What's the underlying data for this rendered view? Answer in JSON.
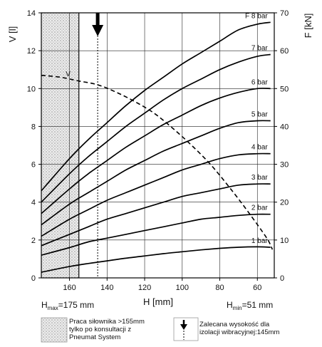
{
  "chart_data": {
    "type": "line",
    "xlabel": "H [mm]",
    "ylabel_left": "V [l]",
    "ylabel_right": "F [kN]",
    "x_reversed": true,
    "xlim": [
      175,
      51
    ],
    "ylim_left": [
      0,
      14
    ],
    "ylim_right": [
      0,
      70
    ],
    "x_ticks": [
      160,
      140,
      120,
      100,
      80,
      60
    ],
    "y_ticks_left": [
      0,
      2,
      4,
      6,
      8,
      10,
      12,
      14
    ],
    "y_ticks_right": [
      0,
      10,
      20,
      30,
      40,
      50,
      60,
      70
    ],
    "grid": true,
    "series": [
      {
        "name": "F 8 bar",
        "axis": "right",
        "x": [
          175,
          160,
          150,
          140,
          130,
          120,
          110,
          100,
          90,
          80,
          70,
          60,
          53
        ],
        "values": [
          23.0,
          31.5,
          36.5,
          41.0,
          45.5,
          49.5,
          53.0,
          56.5,
          59.5,
          62.5,
          65.5,
          67.0,
          67.5
        ]
      },
      {
        "name": "7 bar",
        "axis": "right",
        "x": [
          175,
          160,
          150,
          140,
          130,
          120,
          110,
          100,
          90,
          80,
          70,
          60,
          53
        ],
        "values": [
          20.0,
          27.5,
          32.0,
          36.0,
          40.0,
          43.5,
          47.0,
          50.0,
          52.5,
          55.0,
          57.0,
          58.5,
          59.0
        ]
      },
      {
        "name": "6 bar",
        "axis": "right",
        "x": [
          175,
          160,
          150,
          140,
          130,
          120,
          110,
          100,
          90,
          80,
          70,
          60,
          53
        ],
        "values": [
          17.0,
          23.5,
          27.5,
          31.0,
          34.5,
          37.5,
          40.5,
          43.0,
          45.5,
          47.5,
          49.0,
          50.0,
          50.0
        ]
      },
      {
        "name": "5 bar",
        "axis": "right",
        "x": [
          175,
          160,
          150,
          140,
          130,
          120,
          110,
          100,
          90,
          80,
          70,
          60,
          53
        ],
        "values": [
          14.0,
          19.5,
          22.5,
          25.5,
          28.5,
          31.0,
          33.5,
          35.5,
          37.5,
          39.5,
          41.0,
          41.5,
          41.5
        ]
      },
      {
        "name": "4 bar",
        "axis": "right",
        "x": [
          175,
          160,
          150,
          140,
          130,
          120,
          110,
          100,
          90,
          80,
          70,
          60,
          53
        ],
        "values": [
          11.0,
          15.5,
          18.0,
          20.5,
          22.5,
          24.5,
          26.5,
          28.5,
          30.0,
          31.5,
          32.5,
          32.8,
          32.8
        ]
      },
      {
        "name": "3 bar",
        "axis": "right",
        "x": [
          175,
          160,
          150,
          140,
          130,
          120,
          110,
          100,
          90,
          80,
          70,
          60,
          53
        ],
        "values": [
          8.5,
          11.5,
          13.5,
          15.5,
          17.0,
          18.5,
          20.0,
          21.5,
          22.5,
          23.5,
          24.5,
          24.8,
          24.8
        ]
      },
      {
        "name": "2 bar",
        "axis": "right",
        "x": [
          175,
          160,
          150,
          140,
          130,
          120,
          110,
          100,
          90,
          80,
          70,
          60,
          53
        ],
        "values": [
          6.0,
          8.0,
          9.5,
          10.5,
          11.5,
          12.5,
          13.5,
          14.5,
          15.5,
          16.0,
          16.5,
          16.8,
          16.8
        ]
      },
      {
        "name": "1 bar",
        "axis": "right",
        "x": [
          175,
          160,
          150,
          140,
          130,
          120,
          110,
          100,
          90,
          80,
          70,
          60,
          53
        ],
        "values": [
          1.5,
          3.0,
          3.8,
          4.5,
          5.2,
          5.8,
          6.4,
          6.9,
          7.4,
          7.8,
          8.1,
          8.2,
          8.1
        ]
      },
      {
        "name": "V",
        "axis": "left",
        "style": "dashed",
        "x": [
          175,
          165,
          155,
          145,
          135,
          125,
          115,
          105,
          95,
          85,
          75,
          65,
          55,
          52
        ],
        "values": [
          10.7,
          10.6,
          10.4,
          10.2,
          9.8,
          9.3,
          8.7,
          7.9,
          7.0,
          6.0,
          4.8,
          3.5,
          2.1,
          1.5
        ]
      }
    ],
    "shaded_region": {
      "x_from": 175,
      "x_to": 155,
      "pattern": "hatched"
    },
    "dashed_vertical_x": 145,
    "arrow_x": 145,
    "annotations": {
      "h_max_main": "H",
      "h_max_sub": "max",
      "h_max_value": "=175 mm",
      "h_min_main": "H",
      "h_min_sub": "min",
      "h_min_value": "=51 mm"
    }
  },
  "legend": {
    "shaded_lines": [
      "Praca siłownika >155mm",
      "tylko po konsultacji z",
      "Pneumat System"
    ],
    "arrow_lines": [
      "Zalecana wysokość dla",
      "izolacji wibracyjnej:145mm"
    ]
  }
}
